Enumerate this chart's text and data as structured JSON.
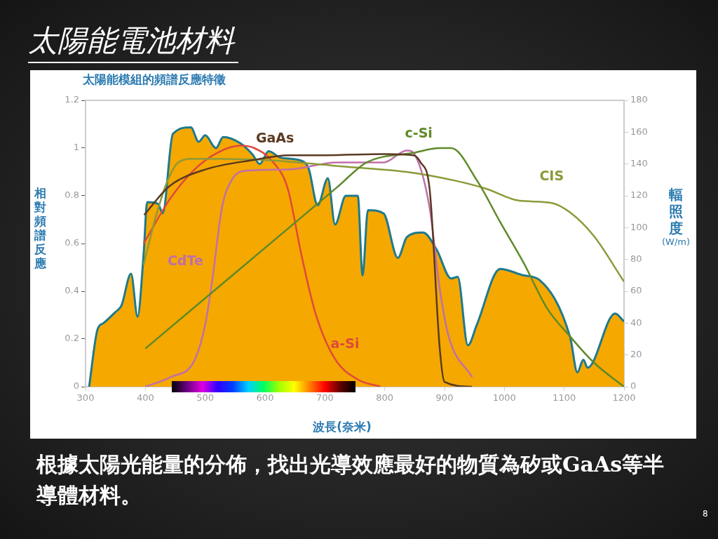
{
  "chart_data": {
    "type": "line",
    "title": "太陽能電池材料",
    "subtitle": "太陽能模組的頻譜反應特徵",
    "xlabel": "波長(奈米)",
    "ylabel": "相對頻譜反應",
    "y2label": "輻照度 (W/m)",
    "xlim": [
      300,
      1200
    ],
    "xticks": [
      300,
      400,
      500,
      600,
      700,
      800,
      900,
      1000,
      1100,
      1200
    ],
    "ylim": [
      0,
      1.2
    ],
    "yticks": [
      0,
      0.2,
      0.4,
      0.6,
      0.8,
      1,
      1.2
    ],
    "y2lim": [
      0,
      180
    ],
    "y2ticks": [
      0,
      20,
      40,
      60,
      80,
      100,
      120,
      140,
      160,
      180
    ],
    "series": [
      {
        "type": "area",
        "axis": "y2",
        "color": "#f5a800",
        "x": [
          306,
          320,
          330,
          350,
          360,
          376,
          387,
          397,
          403,
          421,
          429,
          446,
          476,
          489,
          500,
          518,
          530,
          559,
          579,
          591,
          606,
          626,
          661,
          673,
          688,
          705,
          717,
          735,
          755,
          763,
          772,
          798,
          822,
          837,
          864,
          887,
          911,
          922,
          939,
          954,
          993,
          1032,
          1059,
          1110,
          1122,
          1132,
          1139,
          1185,
          1200
        ],
        "values": [
          0,
          36,
          40,
          47,
          51,
          71,
          44,
          83,
          116,
          115,
          109,
          159,
          163,
          154,
          158,
          150,
          157,
          153,
          146,
          140,
          148,
          144,
          142,
          137,
          114,
          131,
          102,
          120,
          120,
          70,
          111,
          109,
          81,
          94,
          97,
          86,
          68,
          69,
          26,
          39,
          74,
          70,
          67,
          31,
          9,
          17,
          12,
          46,
          41
        ]
      },
      {
        "name": "GaAs",
        "color": "#5a3a22",
        "x": [
          398,
          440,
          500,
          580,
          640,
          700,
          800,
          848,
          860,
          875,
          892,
          900,
          946
        ],
        "values": [
          0.72,
          0.84,
          0.91,
          0.95,
          0.97,
          0.97,
          0.975,
          0.97,
          0.94,
          0.83,
          0.16,
          0.02,
          0
        ]
      },
      {
        "name": "c-Si",
        "color": "#5f8a2a",
        "x": [
          400,
          720,
          770,
          848,
          892,
          911,
          954,
          993,
          1032,
          1071,
          1110,
          1150,
          1200
        ],
        "values": [
          0.16,
          0.835,
          0.94,
          0.98,
          1,
          1,
          0.865,
          0.69,
          0.52,
          0.33,
          0.21,
          0.1,
          0
        ]
      },
      {
        "name": "CIS",
        "color": "#8c9a3a",
        "x": [
          397,
          415,
          435,
          455,
          480,
          600,
          700,
          720,
          837,
          915,
          969,
          1024,
          1079,
          1110,
          1150,
          1200
        ],
        "values": [
          0.51,
          0.69,
          0.85,
          0.94,
          0.955,
          0.95,
          0.93,
          0.925,
          0.9,
          0.865,
          0.83,
          0.78,
          0.77,
          0.73,
          0.63,
          0.44
        ]
      },
      {
        "name": "CdTe",
        "color": "#c070a8",
        "x": [
          400,
          442,
          482,
          500,
          512,
          528,
          544,
          567,
          638,
          720,
          798,
          837,
          852,
          875,
          892,
          907,
          946
        ],
        "values": [
          0,
          0.04,
          0.11,
          0.26,
          0.45,
          0.75,
          0.865,
          0.905,
          0.91,
          0.94,
          0.94,
          0.99,
          0.965,
          0.75,
          0.41,
          0.21,
          0.04
        ]
      },
      {
        "name": "a-Si",
        "color": "#e0483c",
        "x": [
          397,
          442,
          482,
          520,
          559,
          582,
          614,
          638,
          661,
          684,
          716,
          755,
          793
        ],
        "values": [
          0.6,
          0.79,
          0.91,
          0.98,
          1.01,
          1,
          0.94,
          0.83,
          0.55,
          0.31,
          0.12,
          0.03,
          0
        ]
      }
    ],
    "annotations": [
      "根據太陽光能量的分佈，找出光導效應最好的物質為矽或GaAs等半導體材料。",
      "8"
    ]
  }
}
